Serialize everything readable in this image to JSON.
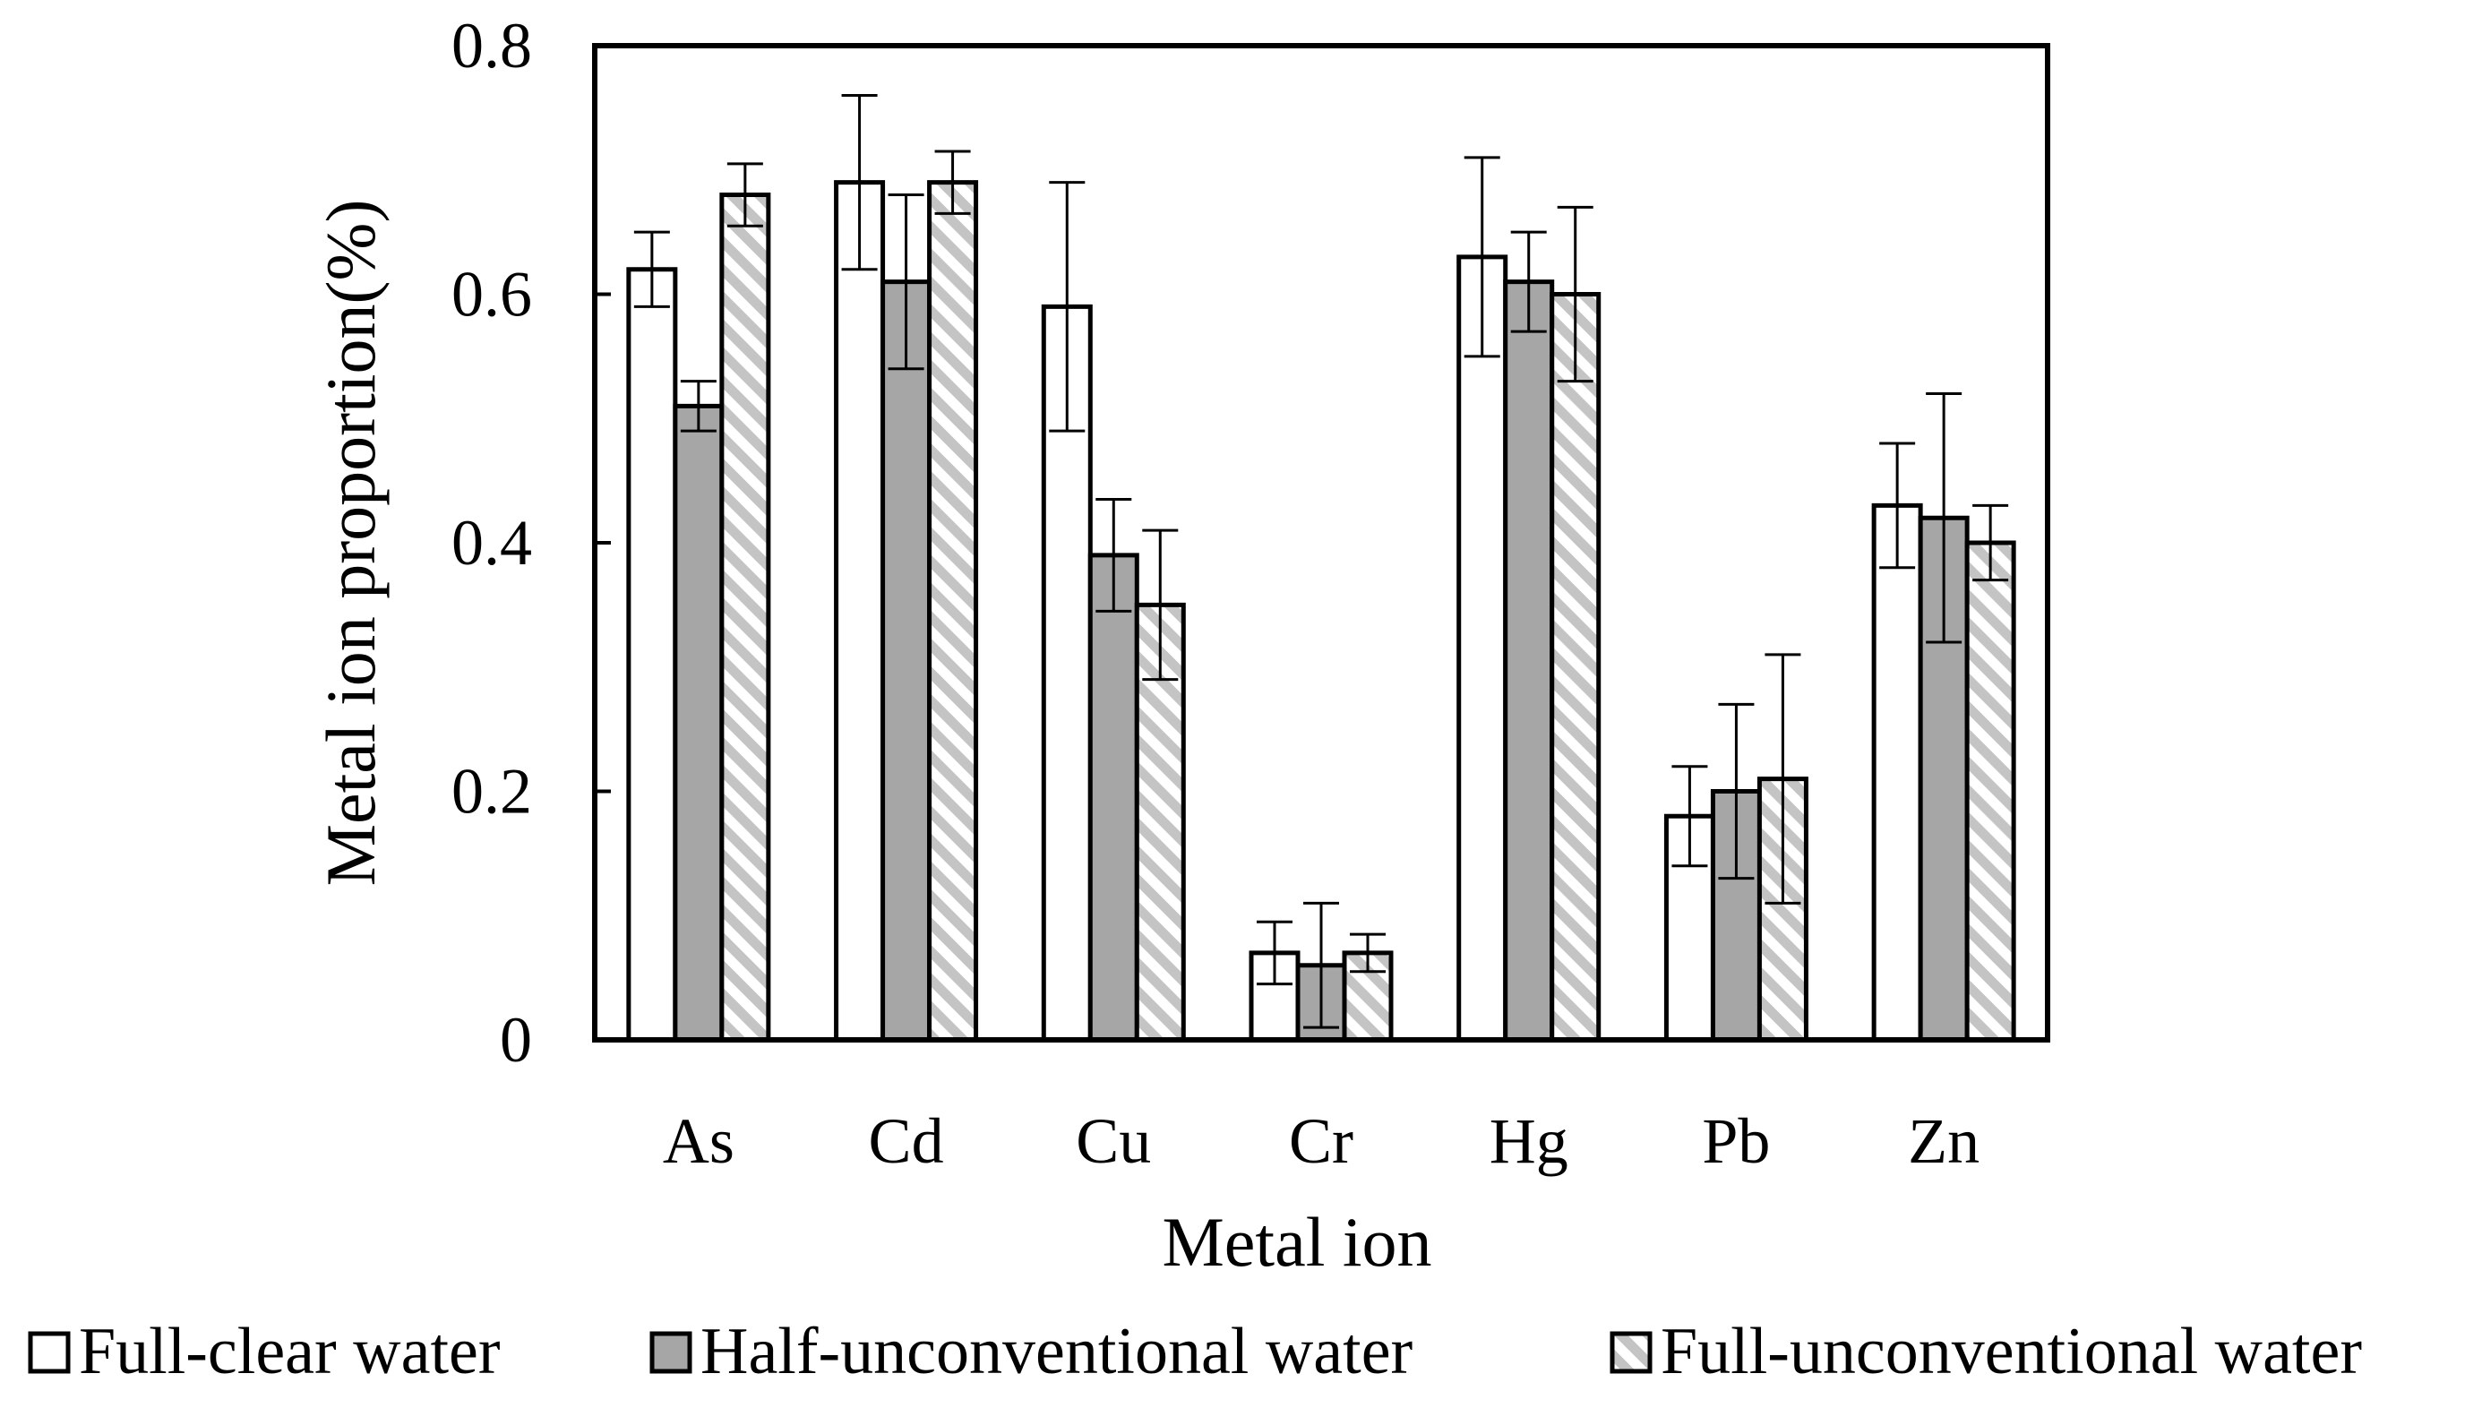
{
  "chart_data": {
    "type": "bar",
    "title": "",
    "xlabel": "Metal ion",
    "ylabel": "Metal ion proportion(%)",
    "ylim": [
      0,
      0.8
    ],
    "yticks": [
      "0",
      "0.2",
      "0.4",
      "0.6",
      "0.8"
    ],
    "ytick_values": [
      0,
      0.2,
      0.4,
      0.6,
      0.8
    ],
    "grid": false,
    "legend_position": "bottom",
    "categories": [
      "As",
      "Cd",
      "Cu",
      "Cr",
      "Hg",
      "Pb",
      "Zn"
    ],
    "series": [
      {
        "name": "Full-clear water",
        "style": "white",
        "values": [
          0.62,
          0.69,
          0.59,
          0.07,
          0.63,
          0.18,
          0.43
        ],
        "errors": [
          0.03,
          0.07,
          0.1,
          0.025,
          0.08,
          0.04,
          0.05
        ]
      },
      {
        "name": "Half-unconventional water",
        "style": "gray",
        "values": [
          0.51,
          0.61,
          0.39,
          0.06,
          0.61,
          0.2,
          0.42
        ],
        "errors": [
          0.02,
          0.07,
          0.045,
          0.05,
          0.04,
          0.07,
          0.1
        ]
      },
      {
        "name": "Full-unconventional water",
        "style": "hatched",
        "values": [
          0.68,
          0.69,
          0.35,
          0.07,
          0.6,
          0.21,
          0.4
        ],
        "errors": [
          0.025,
          0.025,
          0.06,
          0.015,
          0.07,
          0.1,
          0.03
        ]
      }
    ],
    "colors": {
      "white": "#ffffff",
      "gray": "#a6a6a6",
      "hatch": "#c4c4c4",
      "stroke": "#000000"
    }
  }
}
